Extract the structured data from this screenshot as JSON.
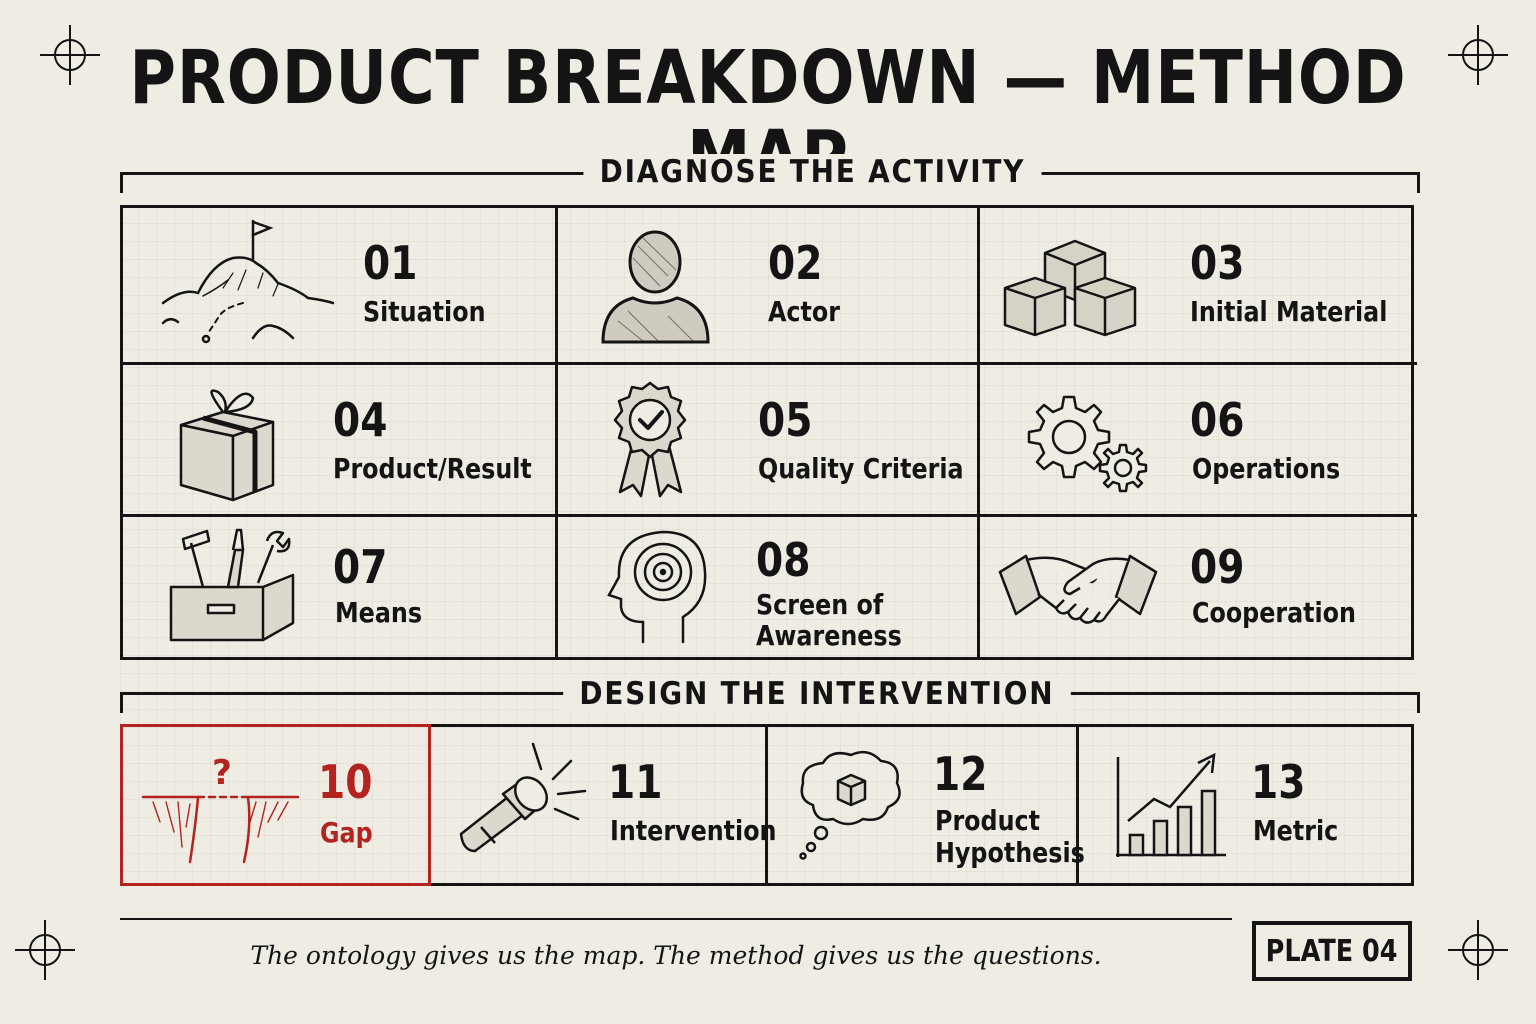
{
  "title": "PRODUCT BREAKDOWN — METHOD MAP",
  "sections": {
    "diagnose": "DIAGNOSE THE ACTIVITY",
    "design": "DESIGN THE INTERVENTION"
  },
  "diagnose_items": [
    {
      "num": "01",
      "label": "Situation",
      "icon": "mountain-flag-icon"
    },
    {
      "num": "02",
      "label": "Actor",
      "icon": "person-bust-icon"
    },
    {
      "num": "03",
      "label": "Initial Material",
      "icon": "cubes-icon"
    },
    {
      "num": "04",
      "label": "Product/Result",
      "icon": "gift-box-icon"
    },
    {
      "num": "05",
      "label": "Quality Criteria",
      "icon": "award-ribbon-icon"
    },
    {
      "num": "06",
      "label": "Operations",
      "icon": "gears-icon"
    },
    {
      "num": "07",
      "label": "Means",
      "icon": "toolbox-icon"
    },
    {
      "num": "08",
      "label_line1": "Screen of",
      "label_line2": "Awareness",
      "icon": "head-target-icon"
    },
    {
      "num": "09",
      "label": "Cooperation",
      "icon": "handshake-icon"
    }
  ],
  "design_items": [
    {
      "num": "10",
      "label": "Gap",
      "icon": "cliff-gap-icon",
      "mark": "?",
      "highlight_color": "#b3231f"
    },
    {
      "num": "11",
      "label": "Intervention",
      "icon": "flashlight-icon"
    },
    {
      "num": "12",
      "label_line1": "Product",
      "label_line2": "Hypothesis",
      "icon": "thought-bubble-cube-icon"
    },
    {
      "num": "13",
      "label": "Metric",
      "icon": "bar-chart-arrow-icon"
    }
  ],
  "footer": {
    "quote": "The ontology gives us the map. The method gives us the questions.",
    "plate": "PLATE 04"
  },
  "colors": {
    "ink": "#141414",
    "paper": "#efece4",
    "accent": "#b3231f"
  }
}
